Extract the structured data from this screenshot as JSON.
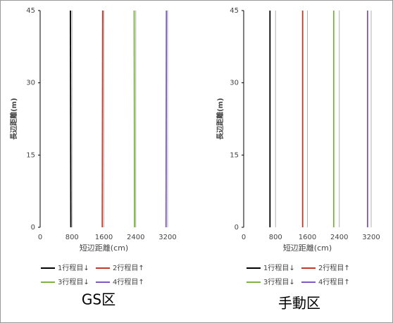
{
  "chart_data": [
    {
      "type": "line",
      "title": "GS区",
      "x_label": "短辺距離(cm)",
      "y_label": "長辺距離(m)",
      "xlim": [
        0,
        3200
      ],
      "xticks": [
        0,
        800,
        1600,
        2400,
        3200
      ],
      "ylim": [
        0,
        45
      ],
      "yticks": [
        0,
        15,
        30,
        45
      ],
      "grid": "x",
      "series": [
        {
          "name": "1行程目↓",
          "color": "#000000",
          "x": [
            770,
            760
          ],
          "values": [
            0,
            45
          ]
        },
        {
          "name": "2行程目↑",
          "color": "#c0392b",
          "x": [
            1560,
            1570
          ],
          "values": [
            0,
            45
          ]
        },
        {
          "name": "3行程目↓",
          "color": "#7cb342",
          "x": [
            2370,
            2360
          ],
          "values": [
            0,
            45
          ]
        },
        {
          "name": "4行程目↑",
          "color": "#7e57c2",
          "x": [
            3160,
            3170
          ],
          "values": [
            0,
            45
          ]
        }
      ]
    },
    {
      "type": "line",
      "title": "手動区",
      "x_label": "短辺距離(cm)",
      "y_label": "長辺距離(m)",
      "xlim": [
        0,
        3200
      ],
      "xticks": [
        0,
        800,
        1600,
        2400,
        3200
      ],
      "ylim": [
        0,
        45
      ],
      "yticks": [
        0,
        15,
        30,
        45
      ],
      "grid": "x",
      "series": [
        {
          "name": "1行程目↓",
          "color": "#000000",
          "x": [
            660,
            660
          ],
          "values": [
            0,
            45
          ]
        },
        {
          "name": "2行程目↑",
          "color": "#c0392b",
          "x": [
            1480,
            1480
          ],
          "values": [
            0,
            45
          ]
        },
        {
          "name": "3行程目↓",
          "color": "#7cb342",
          "x": [
            2260,
            2260
          ],
          "values": [
            0,
            45
          ]
        },
        {
          "name": "4行程目↑",
          "color": "#7e57c2",
          "x": [
            3110,
            3110
          ],
          "values": [
            0,
            45
          ]
        }
      ]
    }
  ]
}
